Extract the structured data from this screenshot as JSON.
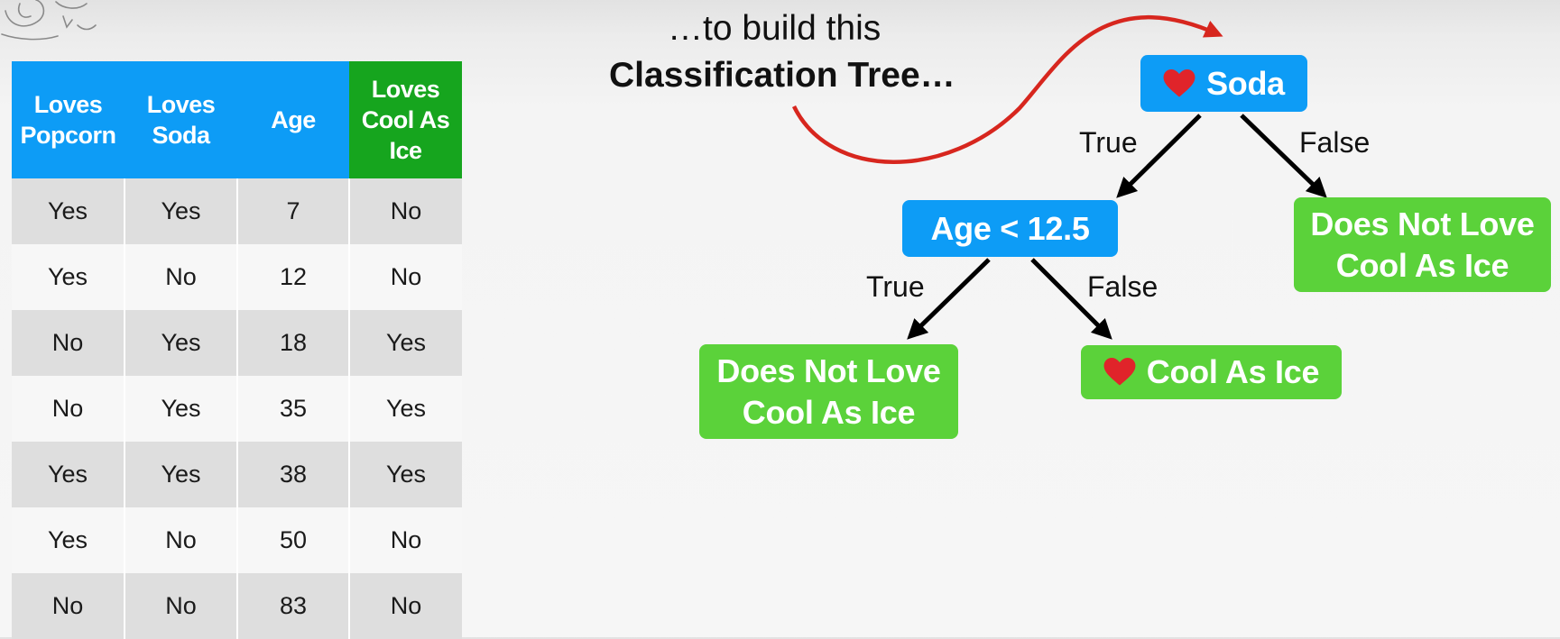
{
  "table": {
    "headers": [
      "Loves\nPopcorn",
      "Loves\nSoda",
      "Age",
      "Loves\nCool As\nIce"
    ],
    "rows": [
      [
        "Yes",
        "Yes",
        "7",
        "No"
      ],
      [
        "Yes",
        "No",
        "12",
        "No"
      ],
      [
        "No",
        "Yes",
        "18",
        "Yes"
      ],
      [
        "No",
        "Yes",
        "35",
        "Yes"
      ],
      [
        "Yes",
        "Yes",
        "38",
        "Yes"
      ],
      [
        "Yes",
        "No",
        "50",
        "No"
      ],
      [
        "No",
        "No",
        "83",
        "No"
      ]
    ]
  },
  "caption": {
    "line1": "…to build this",
    "line2": "Classification Tree…"
  },
  "tree": {
    "root": {
      "label": "Soda",
      "heart": true
    },
    "age_node": {
      "label": "Age < 12.5"
    },
    "leaf_right": {
      "line1": "Does Not Love",
      "line2": "Cool As Ice"
    },
    "leaf_left": {
      "line1": "Does Not Love",
      "line2": "Cool As Ice"
    },
    "leaf_middle": {
      "label": "Cool As Ice",
      "heart": true
    },
    "branches": {
      "root_true": "True",
      "root_false": "False",
      "age_true": "True",
      "age_false": "False"
    }
  },
  "colors": {
    "feature_header": "#0d9cf6",
    "target_header": "#16a51e",
    "decision_node": "#0d9cf6",
    "leaf_node": "#5bd23a",
    "heart": "#e0242a",
    "curved_arrow": "#d7261e"
  },
  "icons": {
    "heart": "heart-icon",
    "curved_arrow": "curved-arrow",
    "doodle": "doodle-logo"
  }
}
